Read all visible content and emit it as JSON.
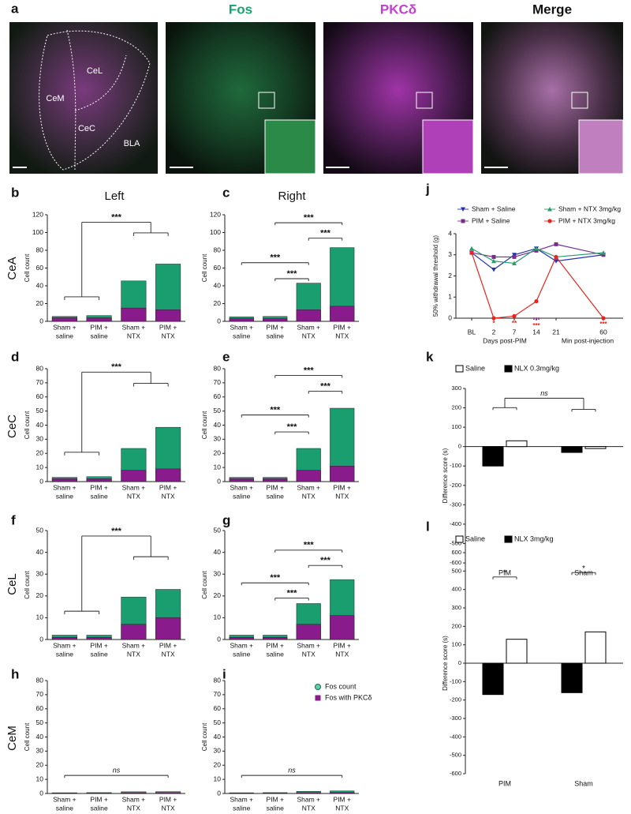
{
  "figure_a": {
    "label": "a",
    "titles": [
      "Fos",
      "PKCδ",
      "Merge"
    ],
    "regions": [
      "CeM",
      "CeL",
      "CeC",
      "BLA"
    ]
  },
  "column_titles": [
    "Left",
    "Right"
  ],
  "row_labels": [
    "CeA",
    "CeC",
    "CeL",
    "CeM"
  ],
  "chart_data": [
    {
      "label": "b",
      "type": "bar",
      "barmode": "overlay",
      "ylabel": "Cell count",
      "categories": [
        [
          "Sham +",
          "saline"
        ],
        [
          "PIM +",
          "saline"
        ],
        [
          "Sham +",
          "NTX"
        ],
        [
          "PIM +",
          "NTX"
        ]
      ],
      "series": [
        {
          "color": "#1a9e70",
          "values": [
            5.5,
            6.5,
            45.5,
            64.5
          ]
        },
        {
          "color": "#8a1b8c",
          "values": [
            4,
            4,
            15,
            13
          ]
        }
      ],
      "ylim": [
        0,
        120
      ],
      "yticks": [
        0,
        20,
        40,
        60,
        80,
        100,
        120
      ],
      "annotations": [
        "***"
      ]
    },
    {
      "label": "c",
      "type": "bar",
      "barmode": "overlay",
      "ylabel": "Cell count",
      "categories": [
        [
          "Sham +",
          "saline"
        ],
        [
          "PIM +",
          "saline"
        ],
        [
          "Sham +",
          "NTX"
        ],
        [
          "PIM +",
          "NTX"
        ]
      ],
      "series": [
        {
          "color": "#1a9e70",
          "values": [
            5,
            5.5,
            43,
            83
          ]
        },
        {
          "color": "#8a1b8c",
          "values": [
            3,
            3,
            13,
            17
          ]
        }
      ],
      "ylim": [
        0,
        120
      ],
      "yticks": [
        0,
        20,
        40,
        60,
        80,
        100,
        120
      ],
      "annotations": [
        "***",
        "***",
        "***",
        "***"
      ]
    },
    {
      "label": "d",
      "type": "bar",
      "barmode": "overlay",
      "ylabel": "Cell count",
      "categories": [
        [
          "Sham +",
          "saline"
        ],
        [
          "PIM +",
          "saline"
        ],
        [
          "Sham +",
          "NTX"
        ],
        [
          "PIM +",
          "NTX"
        ]
      ],
      "series": [
        {
          "color": "#1a9e70",
          "values": [
            3,
            3.5,
            23.5,
            38.5
          ]
        },
        {
          "color": "#8a1b8c",
          "values": [
            2,
            2,
            8,
            9
          ]
        }
      ],
      "ylim": [
        0,
        80
      ],
      "yticks": [
        0,
        10,
        20,
        30,
        40,
        50,
        60,
        70,
        80
      ],
      "annotations": [
        "***"
      ]
    },
    {
      "label": "e",
      "type": "bar",
      "barmode": "overlay",
      "ylabel": "Cell count",
      "categories": [
        [
          "Sham +",
          "saline"
        ],
        [
          "PIM +",
          "saline"
        ],
        [
          "Sham +",
          "NTX"
        ],
        [
          "PIM +",
          "NTX"
        ]
      ],
      "series": [
        {
          "color": "#1a9e70",
          "values": [
            3,
            3,
            23.5,
            52
          ]
        },
        {
          "color": "#8a1b8c",
          "values": [
            2,
            2,
            8,
            11
          ]
        }
      ],
      "ylim": [
        0,
        80
      ],
      "yticks": [
        0,
        10,
        20,
        30,
        40,
        50,
        60,
        70,
        80
      ],
      "annotations": [
        "***",
        "***",
        "***",
        "***"
      ]
    },
    {
      "label": "f",
      "type": "bar",
      "barmode": "overlay",
      "ylabel": "Cell count",
      "categories": [
        [
          "Sham +",
          "saline"
        ],
        [
          "PIM +",
          "saline"
        ],
        [
          "Sham +",
          "NTX"
        ],
        [
          "PIM +",
          "NTX"
        ]
      ],
      "series": [
        {
          "color": "#1a9e70",
          "values": [
            2,
            2,
            19.5,
            23
          ]
        },
        {
          "color": "#8a1b8c",
          "values": [
            1,
            1,
            7,
            10
          ]
        }
      ],
      "ylim": [
        0,
        50
      ],
      "yticks": [
        0,
        10,
        20,
        30,
        40,
        50
      ],
      "annotations": [
        "***"
      ]
    },
    {
      "label": "g",
      "type": "bar",
      "barmode": "overlay",
      "ylabel": "Cell count",
      "categories": [
        [
          "Sham +",
          "saline"
        ],
        [
          "PIM +",
          "saline"
        ],
        [
          "Sham +",
          "NTX"
        ],
        [
          "PIM +",
          "NTX"
        ]
      ],
      "series": [
        {
          "color": "#1a9e70",
          "values": [
            2,
            2,
            16.5,
            27.5
          ]
        },
        {
          "color": "#8a1b8c",
          "values": [
            1,
            1,
            7,
            11
          ]
        }
      ],
      "ylim": [
        0,
        50
      ],
      "yticks": [
        0,
        10,
        20,
        30,
        40,
        50
      ],
      "annotations": [
        "***",
        "***",
        "***",
        "***"
      ]
    },
    {
      "label": "h",
      "type": "bar",
      "barmode": "overlay",
      "ylabel": "Cell count",
      "categories": [
        [
          "Sham +",
          "saline"
        ],
        [
          "PIM +",
          "saline"
        ],
        [
          "Sham +",
          "NTX"
        ],
        [
          "PIM +",
          "NTX"
        ]
      ],
      "series": [
        {
          "color": "#1a9e70",
          "values": [
            0.5,
            0.6,
            1.2,
            1.3
          ]
        },
        {
          "color": "#8a1b8c",
          "values": [
            0.3,
            0.3,
            0.4,
            0.5
          ]
        }
      ],
      "ylim": [
        0,
        80
      ],
      "yticks": [
        0,
        10,
        20,
        30,
        40,
        50,
        60,
        70,
        80
      ],
      "annotations": [
        "ns"
      ]
    },
    {
      "label": "i",
      "type": "bar",
      "barmode": "overlay",
      "ylabel": "Cell count",
      "legend": true,
      "categories": [
        [
          "Sham +",
          "saline"
        ],
        [
          "PIM +",
          "saline"
        ],
        [
          "Sham +",
          "NTX"
        ],
        [
          "PIM +",
          "NTX"
        ]
      ],
      "series": [
        {
          "name": "Fos count",
          "color": "#1a9e70",
          "values": [
            0.5,
            0.6,
            1.5,
            1.8
          ]
        },
        {
          "name": "Fos with PKCδ",
          "color": "#8a1b8c",
          "values": [
            0.3,
            0.3,
            0.5,
            0.6
          ]
        }
      ],
      "ylim": [
        0,
        80
      ],
      "yticks": [
        0,
        10,
        20,
        30,
        40,
        50,
        60,
        70,
        80
      ],
      "annotations": [
        "ns"
      ]
    },
    {
      "label": "j",
      "type": "line",
      "ylabel": "50% withdrawal threshold (g)",
      "categories": [
        "BL",
        "2",
        "7",
        "14",
        "21",
        "60"
      ],
      "xlabels": [
        "Days post-PIM",
        "Min post-injection"
      ],
      "series": [
        {
          "name": "Sham + Saline",
          "color": "#2430b0",
          "marker": "triangle-down",
          "values": [
            3.1,
            2.3,
            3.0,
            3.3,
            2.7,
            3.0
          ]
        },
        {
          "name": "PIM + Saline",
          "color": "#7b2d8e",
          "marker": "square",
          "values": [
            3.1,
            2.9,
            2.9,
            3.2,
            3.5,
            3.0
          ]
        },
        {
          "name": "Sham + NTX 3mg/kg",
          "color": "#2a9d6f",
          "marker": "triangle-up",
          "values": [
            3.3,
            2.7,
            2.6,
            3.3,
            2.9,
            3.1
          ]
        },
        {
          "name": "PIM + NTX 3mg/kg",
          "color": "#e8241c",
          "marker": "circle",
          "values": [
            3.1,
            0.0,
            0.1,
            0.8,
            2.9,
            0.0
          ]
        }
      ],
      "ylim": [
        0,
        4
      ],
      "yticks": [
        0,
        1,
        2,
        3,
        4
      ],
      "annotations": [
        {
          "label": "*",
          "color": "#e8241c"
        },
        {
          "label": "**",
          "color": "#e8241c"
        },
        {
          "label": "***",
          "color": "#7b2d8e"
        },
        {
          "label": "***",
          "color": "#e8241c"
        },
        {
          "label": "***",
          "color": "#e8241c"
        }
      ]
    },
    {
      "label": "k",
      "type": "bar",
      "barmode": "group",
      "ylabel": "Difference score (s)",
      "categories": [
        "PIM",
        "Sham"
      ],
      "series": [
        {
          "name": "NLX 0.3mg/kg",
          "color": "#000000",
          "values": [
            -100,
            -30
          ]
        },
        {
          "name": "Saline",
          "color": "#ffffff",
          "values": [
            30,
            -10
          ]
        }
      ],
      "ylim": [
        -600,
        300
      ],
      "yticks": [
        -600,
        -500,
        -400,
        -300,
        -200,
        -100,
        0,
        100,
        200,
        300
      ],
      "annotations": [
        "ns"
      ]
    },
    {
      "label": "l",
      "type": "bar",
      "barmode": "group",
      "ylabel": "Difference score (s)",
      "categories": [
        "PIM",
        "Sham"
      ],
      "series": [
        {
          "name": "NLX 3mg/kg",
          "color": "#000000",
          "values": [
            -170,
            -160
          ]
        },
        {
          "name": "Saline",
          "color": "#ffffff",
          "values": [
            130,
            170
          ]
        }
      ],
      "ylim": [
        -600,
        600
      ],
      "yticks": [
        -600,
        -500,
        -400,
        -300,
        -200,
        -100,
        0,
        100,
        200,
        300,
        400,
        500,
        600
      ],
      "annotations": [
        "*",
        "*"
      ]
    }
  ]
}
